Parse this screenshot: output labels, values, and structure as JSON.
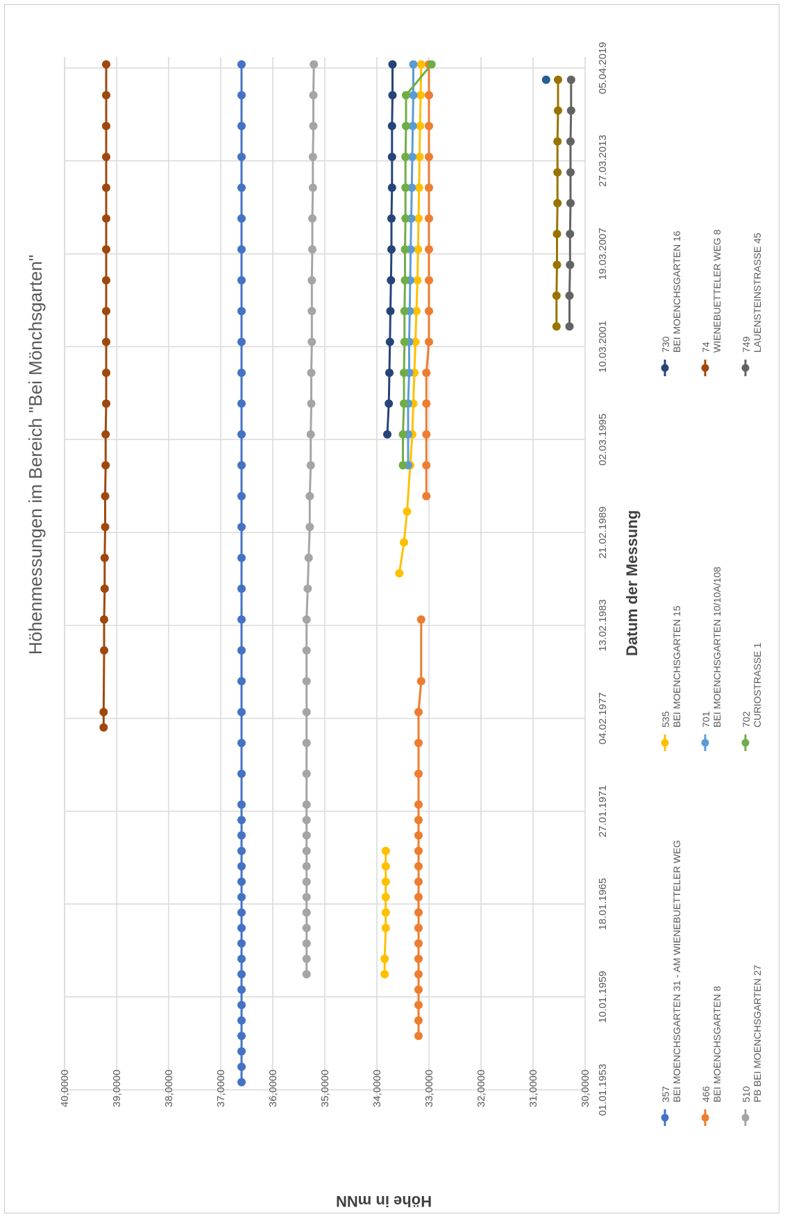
{
  "chart_data": {
    "type": "line",
    "title": "Höhenmessungen im Bereich \"Bei Mönchsgarten\"",
    "xlabel": "Datum der Messung",
    "ylabel": "Höhe in mNN",
    "ylim": [
      30,
      40
    ],
    "y_ticks": [
      "30,0000",
      "31,0000",
      "32,0000",
      "33,0000",
      "34,0000",
      "35,0000",
      "36,0000",
      "37,0000",
      "38,0000",
      "39,0000",
      "40,0000"
    ],
    "x_ticks": [
      "01.01.1953",
      "10.01.1959",
      "18.01.1965",
      "27.01.1971",
      "04.02.1977",
      "13.02.1983",
      "21.02.1989",
      "02.03.1995",
      "10.03.2001",
      "19.03.2007",
      "27.03.2013",
      "05.04.2019"
    ],
    "grid": true,
    "legend_placement": "bottom",
    "series": [
      {
        "code": "357",
        "name": "BEI MOENCHSGARTEN 31 - AM WIENEBUETTELER WEG",
        "color": "#4472c4",
        "years": [
          1953,
          1954,
          1955,
          1956,
          1957,
          1958,
          1959,
          1960,
          1961,
          1962,
          1963,
          1964,
          1965,
          1966,
          1967,
          1968,
          1969,
          1970,
          1971,
          1973,
          1975,
          1977,
          1979,
          1981,
          1983,
          1985,
          1987,
          1989,
          1991,
          1993,
          1995,
          1997,
          1999,
          2001,
          2003,
          2005,
          2007,
          2009,
          2011,
          2013,
          2015,
          2017,
          2019
        ],
        "values": [
          36.6,
          36.6,
          36.6,
          36.6,
          36.6,
          36.6,
          36.6,
          36.6,
          36.6,
          36.6,
          36.6,
          36.6,
          36.6,
          36.6,
          36.6,
          36.6,
          36.6,
          36.6,
          36.6,
          36.6,
          36.6,
          36.6,
          36.6,
          36.6,
          36.6,
          36.6,
          36.6,
          36.6,
          36.6,
          36.6,
          36.6,
          36.6,
          36.6,
          36.6,
          36.6,
          36.6,
          36.6,
          36.6,
          36.6,
          36.6,
          36.6,
          36.6,
          36.6
        ]
      },
      {
        "code": "466",
        "name": "BEI MOENCHSGARTEN 8",
        "color": "#ed7d31",
        "years": [
          1956,
          1957,
          1958,
          1959,
          1960,
          1961,
          1962,
          1963,
          1964,
          1965,
          1966,
          1967,
          1968,
          1969,
          1970,
          1971,
          1973,
          1975,
          1977,
          1979,
          1983,
          1991,
          1993,
          1995,
          1997,
          1999,
          2001,
          2003,
          2005,
          2007,
          2009,
          2011,
          2013,
          2015,
          2017,
          2019
        ],
        "values": [
          33.2,
          33.2,
          33.2,
          33.2,
          33.2,
          33.2,
          33.2,
          33.2,
          33.2,
          33.2,
          33.2,
          33.2,
          33.2,
          33.2,
          33.2,
          33.2,
          33.2,
          33.2,
          33.2,
          33.15,
          33.15,
          33.05,
          33.05,
          33.05,
          33.05,
          33.05,
          33.0,
          33.0,
          33.0,
          33.0,
          33.0,
          33.0,
          33.0,
          33.0,
          33.0,
          33.0
        ]
      },
      {
        "code": "510",
        "name": "PB BEI MOENCHSGARTEN 27",
        "color": "#a5a5a5",
        "years": [
          1960,
          1961,
          1962,
          1963,
          1964,
          1965,
          1966,
          1967,
          1968,
          1969,
          1970,
          1971,
          1973,
          1975,
          1977,
          1979,
          1981,
          1983,
          1985,
          1987,
          1989,
          1991,
          1993,
          1995,
          1997,
          1999,
          2001,
          2003,
          2005,
          2007,
          2009,
          2011,
          2013,
          2015,
          2017,
          2019
        ],
        "values": [
          35.35,
          35.35,
          35.35,
          35.35,
          35.35,
          35.35,
          35.35,
          35.35,
          35.35,
          35.35,
          35.35,
          35.35,
          35.35,
          35.35,
          35.35,
          35.35,
          35.35,
          35.35,
          35.33,
          35.31,
          35.29,
          35.29,
          35.27,
          35.27,
          35.26,
          35.26,
          35.25,
          35.25,
          35.25,
          35.24,
          35.24,
          35.23,
          35.23,
          35.22,
          35.22,
          35.21
        ]
      },
      {
        "code": "535",
        "name": "BEI MOENCHSGARTEN 15",
        "color": "#ffc000",
        "years": [
          1960,
          1961,
          1963,
          1964,
          1965,
          1966,
          1967,
          1968,
          1986,
          1988,
          1990,
          1993,
          1995,
          1997,
          1999,
          2001,
          2003,
          2005,
          2007,
          2009,
          2011,
          2013,
          2015,
          2017,
          2019
        ],
        "values": [
          33.85,
          33.85,
          33.83,
          33.83,
          33.83,
          33.83,
          33.83,
          33.83,
          33.57,
          33.48,
          33.42,
          33.36,
          33.32,
          33.3,
          33.28,
          33.26,
          33.24,
          33.22,
          33.21,
          33.2,
          33.19,
          33.18,
          33.17,
          33.16,
          33.15
        ]
      },
      {
        "code": "701",
        "name": "BEI MOENCHSGARTEN 10/10A/108",
        "color": "#5b9bd5",
        "years": [
          1993,
          1995,
          1997,
          1999,
          2001,
          2003,
          2005,
          2007,
          2009,
          2011,
          2013,
          2015,
          2017,
          2019
        ],
        "values": [
          33.4,
          33.4,
          33.4,
          33.38,
          33.38,
          33.37,
          33.36,
          33.35,
          33.34,
          33.33,
          33.32,
          33.31,
          33.3,
          33.3
        ]
      },
      {
        "code": "702",
        "name": "CURIOSTRASSE 1",
        "color": "#70ad47",
        "years": [
          1993,
          1995,
          1997,
          1999,
          2001,
          2003,
          2005,
          2007,
          2009,
          2011,
          2013,
          2015,
          2017,
          2019
        ],
        "values": [
          33.5,
          33.5,
          33.48,
          33.48,
          33.47,
          33.47,
          33.46,
          33.46,
          33.45,
          33.45,
          33.45,
          33.44,
          33.44,
          32.95
        ]
      },
      {
        "code": "730",
        "name": "BEI MOENCHSGARTEN 16",
        "color": "#264478",
        "years": [
          1995,
          1997,
          1999,
          2001,
          2003,
          2005,
          2007,
          2009,
          2011,
          2013,
          2015,
          2017,
          2019
        ],
        "values": [
          33.8,
          33.77,
          33.76,
          33.75,
          33.74,
          33.73,
          33.72,
          33.72,
          33.71,
          33.71,
          33.71,
          33.7,
          33.7
        ]
      },
      {
        "code": "74",
        "name": "WIENEBUETTELER WEG 8",
        "color": "#9e480e",
        "years": [
          1976,
          1977,
          1981,
          1983,
          1985,
          1987,
          1989,
          1991,
          1993,
          1995,
          1997,
          1999,
          2001,
          2003,
          2005,
          2007,
          2009,
          2011,
          2013,
          2015,
          2017,
          2019
        ],
        "values": [
          39.25,
          39.25,
          39.24,
          39.24,
          39.23,
          39.23,
          39.22,
          39.22,
          39.21,
          39.21,
          39.2,
          39.2,
          39.2,
          39.2,
          39.2,
          39.2,
          39.2,
          39.2,
          39.2,
          39.2,
          39.2,
          39.2
        ]
      },
      {
        "code": "749",
        "name": "LAUENSTEINSTRASSE 45",
        "color": "#636363",
        "years": [
          2002,
          2004,
          2006,
          2008,
          2010,
          2012,
          2014,
          2016,
          2018
        ],
        "values": [
          30.3,
          30.3,
          30.29,
          30.29,
          30.28,
          30.28,
          30.28,
          30.27,
          30.27
        ]
      },
      {
        "code": "",
        "name": "",
        "color": "#997300",
        "years": [
          2002,
          2004,
          2006,
          2008,
          2010,
          2012,
          2014,
          2016,
          2018
        ],
        "values": [
          30.55,
          30.55,
          30.54,
          30.54,
          30.53,
          30.53,
          30.53,
          30.52,
          30.52
        ]
      },
      {
        "code": "",
        "name": "",
        "color": "#255e91",
        "years": [
          2018
        ],
        "values": [
          30.75
        ]
      }
    ]
  }
}
